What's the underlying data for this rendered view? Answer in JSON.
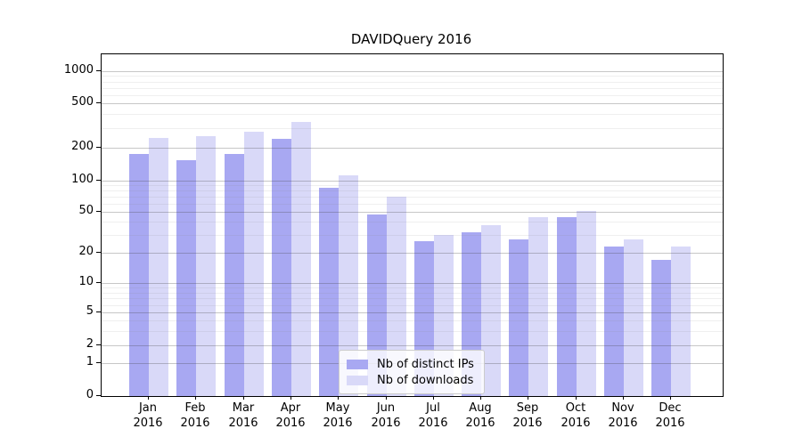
{
  "title": "DAVIDQuery 2016",
  "chart_data": {
    "type": "bar",
    "title": "DAVIDQuery 2016",
    "categories": [
      "Jan 2016",
      "Feb 2016",
      "Mar 2016",
      "Apr 2016",
      "May 2016",
      "Jun 2016",
      "Jul 2016",
      "Aug 2016",
      "Sep 2016",
      "Oct 2016",
      "Nov 2016",
      "Dec 2016"
    ],
    "series": [
      {
        "name": "Nb of distinct IPs",
        "color": "#a8a8f2",
        "values": [
          175,
          155,
          175,
          240,
          85,
          47,
          26,
          32,
          27,
          44,
          23,
          17
        ]
      },
      {
        "name": "Nb of downloads",
        "color": "#d9d9f8",
        "values": [
          245,
          255,
          280,
          340,
          112,
          70,
          30,
          37,
          44,
          51,
          27,
          23
        ]
      }
    ],
    "xlabel": "",
    "ylabel": "",
    "yscale": "symlog",
    "ylim": [
      0,
      1000
    ],
    "yticks": [
      0,
      1,
      2,
      5,
      10,
      20,
      50,
      100,
      200,
      500,
      1000
    ],
    "minor_yticks": [
      3,
      4,
      6,
      7,
      8,
      9,
      30,
      40,
      60,
      70,
      80,
      90,
      300,
      400,
      600,
      700,
      800,
      900
    ],
    "grid": "both",
    "legend_position": "lower center"
  },
  "colors": {
    "background": "#ffffff",
    "axis": "#000000",
    "grid_major": "rgba(70,70,70,0.30)",
    "grid_minor": "rgba(130,130,130,0.13)",
    "legend_border": "#cccccc",
    "legend_background": "rgba(255,255,255,0.8)"
  }
}
